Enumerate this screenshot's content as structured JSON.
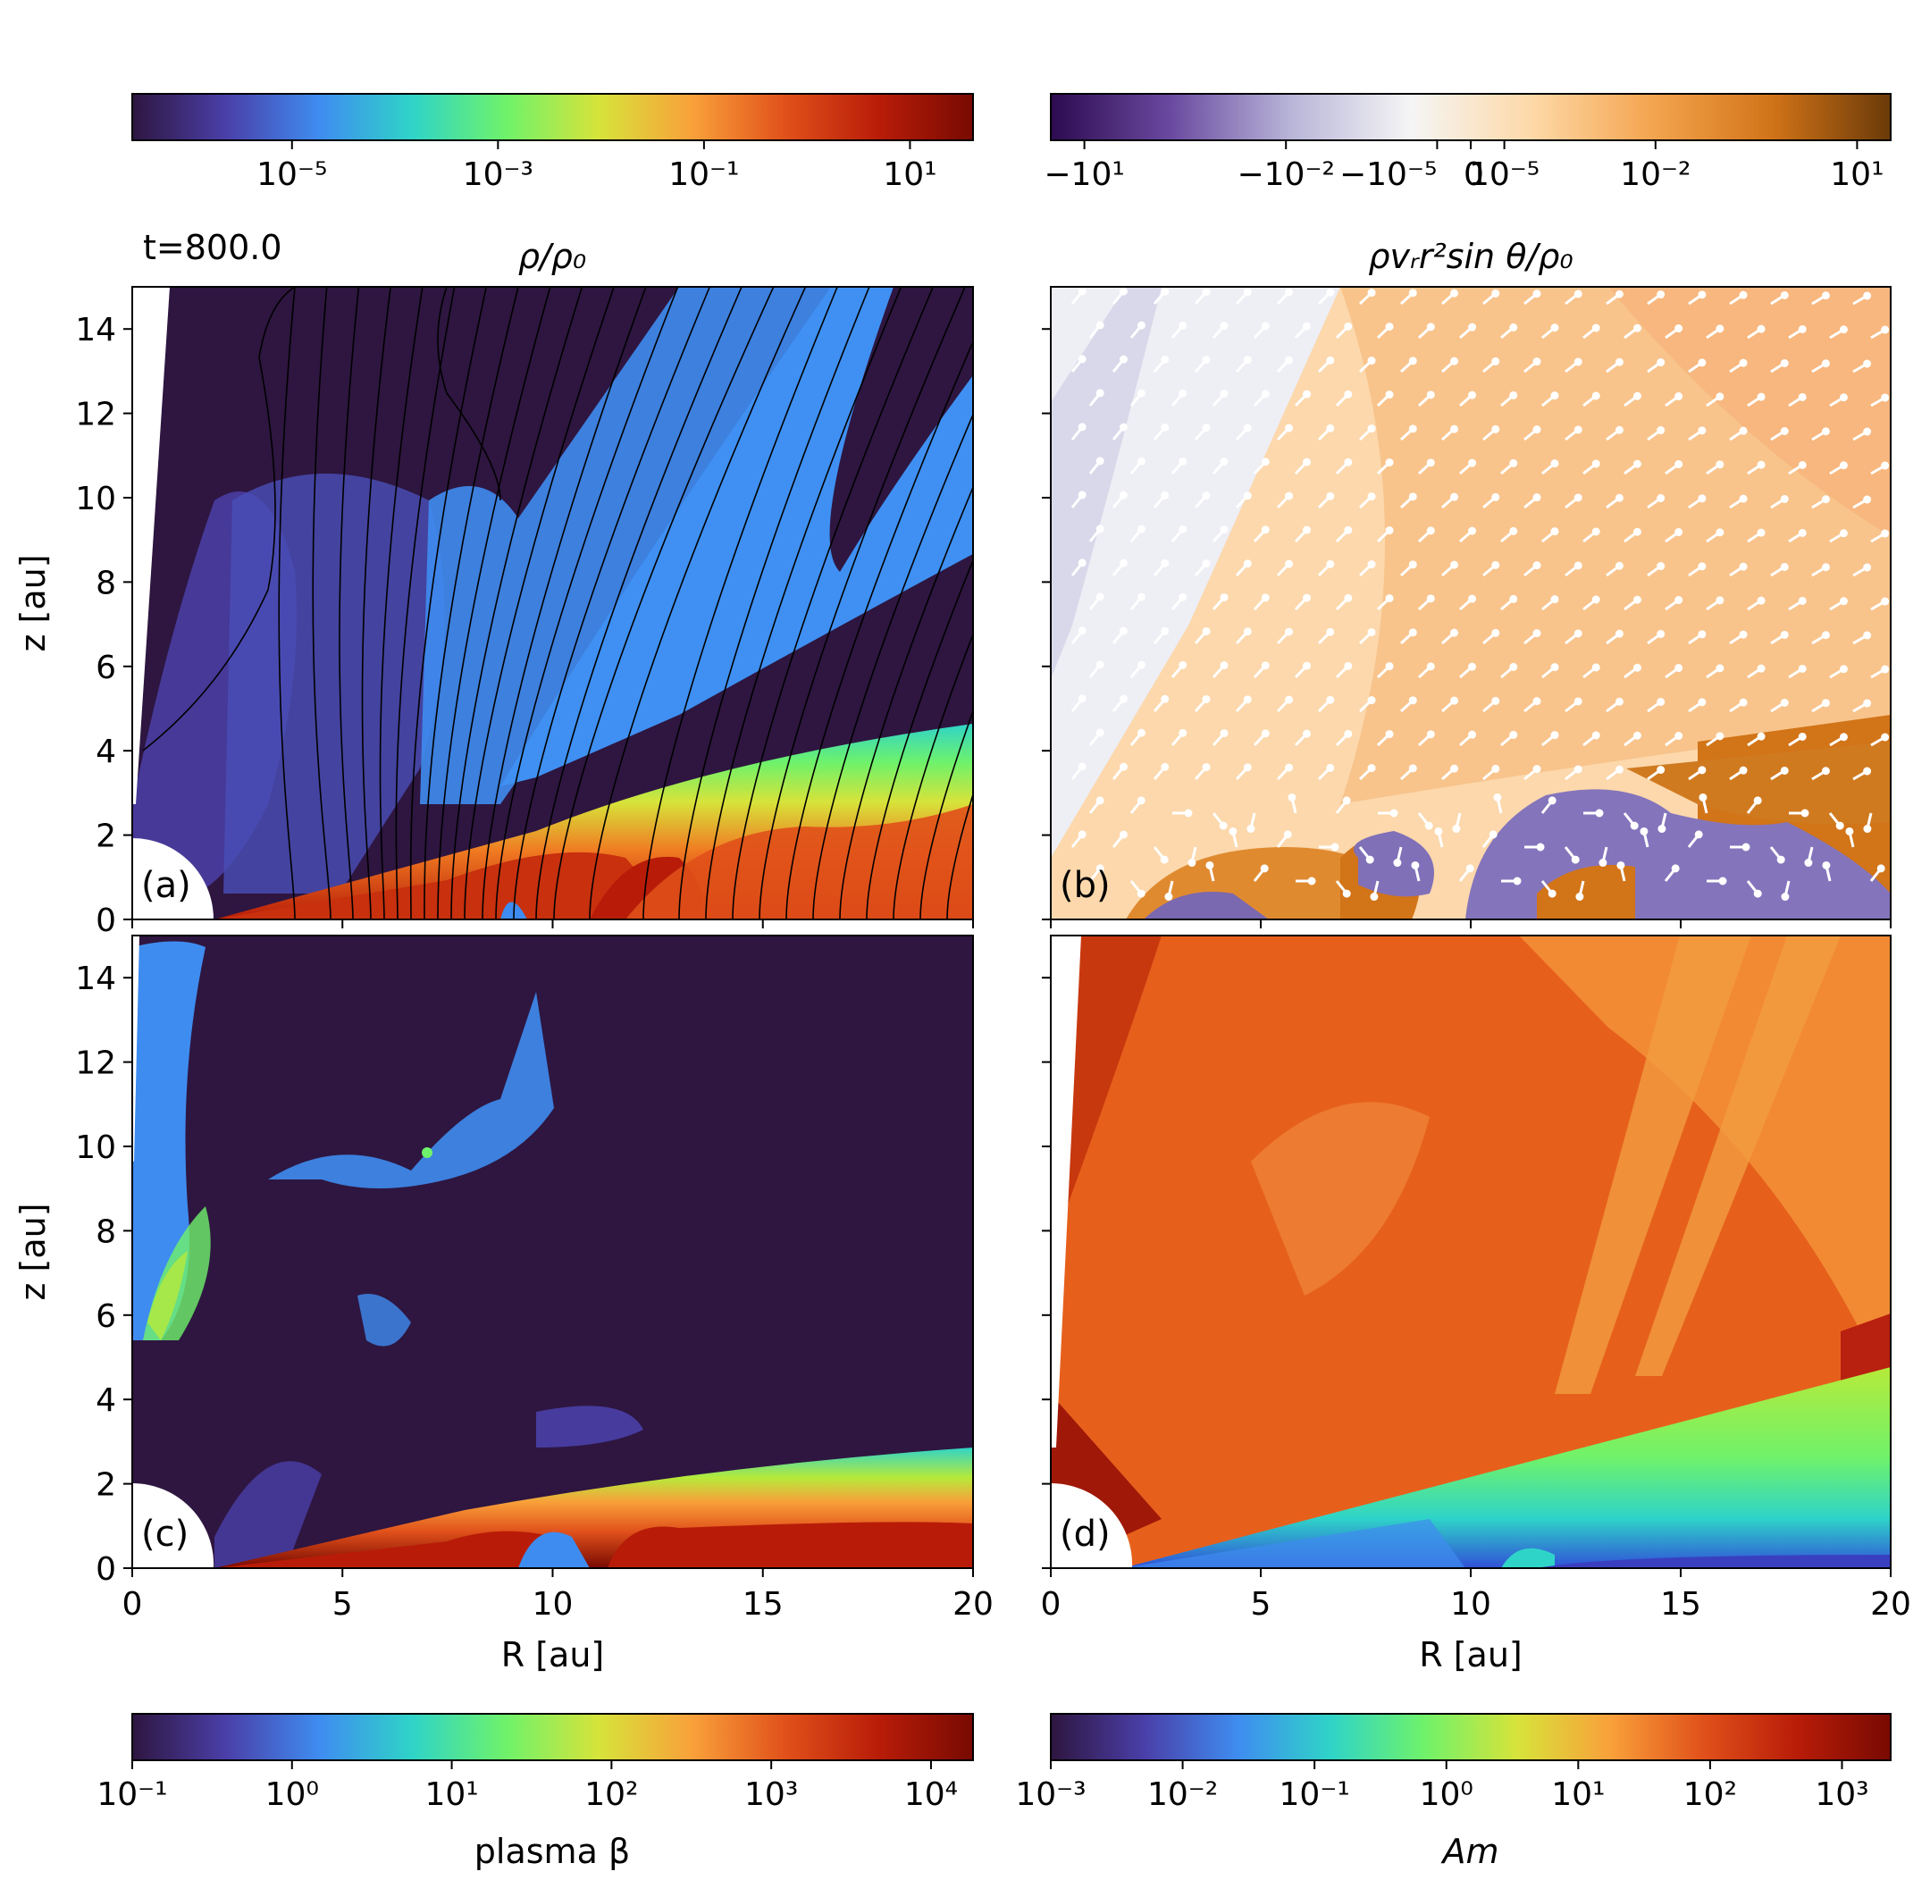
{
  "figure": {
    "time_label": "t=800.0"
  },
  "panels": [
    {
      "id": "a",
      "tag": "(a)",
      "quantity": "density",
      "cmap": [
        "#2e1640",
        "#4a3fa8",
        "#3f8cf0",
        "#2fd4c8",
        "#6ff26a",
        "#d7e33a",
        "#f9a03a",
        "#e0501a",
        "#b81c08",
        "#780a02"
      ]
    },
    {
      "id": "b",
      "tag": "(b)",
      "quantity": "mass flux",
      "cmap": [
        "#2d0b50",
        "#6a4aa0",
        "#b8b5d8",
        "#f5f5f5",
        "#fdd9a8",
        "#f4a550",
        "#d27418",
        "#6a3a08"
      ]
    },
    {
      "id": "c",
      "tag": "(c)",
      "quantity": "plasma beta",
      "cmap": [
        "#2e1640",
        "#4a3fa8",
        "#3f8cf0",
        "#2fd4c8",
        "#6ff26a",
        "#d7e33a",
        "#f9a03a",
        "#e0501a",
        "#b81c08",
        "#780a02"
      ]
    },
    {
      "id": "d",
      "tag": "(d)",
      "quantity": "Am",
      "cmap": [
        "#2e1640",
        "#4a3fa8",
        "#3f8cf0",
        "#2fd4c8",
        "#6ff26a",
        "#d7e33a",
        "#f9a03a",
        "#e0501a",
        "#b81c08",
        "#780a02"
      ]
    }
  ],
  "colorbars": {
    "top_left": {
      "label": "ρ/ρ₀",
      "ticks": [
        "10⁻⁵",
        "10⁻³",
        "10⁻¹",
        "10¹"
      ]
    },
    "top_right": {
      "label": "ρvᵣr²sin θ/ρ₀",
      "ticks": [
        "−10¹",
        "−10⁻²",
        "−10⁻⁵",
        "0",
        "10⁻⁵",
        "10⁻²",
        "10¹"
      ]
    },
    "bottom_left": {
      "label": "plasma β",
      "ticks": [
        "10⁻¹",
        "10⁰",
        "10¹",
        "10²",
        "10³",
        "10⁴"
      ]
    },
    "bottom_right": {
      "label": "Am",
      "ticks": [
        "10⁻³",
        "10⁻²",
        "10⁻¹",
        "10⁰",
        "10¹",
        "10²",
        "10³"
      ]
    }
  },
  "chart_data": [
    {
      "type": "heatmap",
      "panel": "(a)",
      "colorbar_label": "ρ/ρ₀",
      "colorbar_ticks": [
        "10⁻⁵",
        "10⁻³",
        "10⁻¹",
        "10¹"
      ],
      "ylabel": "z [au]",
      "yticks": [
        "0",
        "2",
        "4",
        "6",
        "8",
        "10",
        "12",
        "14"
      ],
      "xlim": [
        0,
        20
      ],
      "ylim": [
        0,
        15
      ],
      "overlay": "field lines"
    },
    {
      "type": "heatmap",
      "panel": "(b)",
      "colorbar_label": "ρvᵣr²sin θ/ρ₀",
      "colorbar_ticks": [
        "−10¹",
        "−10⁻²",
        "−10⁻⁵",
        "0",
        "10⁻⁵",
        "10⁻²",
        "10¹"
      ],
      "xlim": [
        0,
        20
      ],
      "ylim": [
        0,
        15
      ],
      "overlay": "velocity arrows"
    },
    {
      "type": "heatmap",
      "panel": "(c)",
      "colorbar_label": "plasma β",
      "colorbar_ticks": [
        "10⁻¹",
        "10⁰",
        "10¹",
        "10²",
        "10³",
        "10⁴"
      ],
      "xlabel": "R [au]",
      "ylabel": "z [au]",
      "xticks": [
        "0",
        "5",
        "10",
        "15",
        "20"
      ],
      "yticks": [
        "0",
        "2",
        "4",
        "6",
        "8",
        "10",
        "12",
        "14"
      ],
      "xlim": [
        0,
        20
      ],
      "ylim": [
        0,
        15
      ]
    },
    {
      "type": "heatmap",
      "panel": "(d)",
      "colorbar_label": "Am",
      "colorbar_ticks": [
        "10⁻³",
        "10⁻²",
        "10⁻¹",
        "10⁰",
        "10¹",
        "10²",
        "10³"
      ],
      "xlabel": "R [au]",
      "xticks": [
        "0",
        "5",
        "10",
        "15",
        "20"
      ],
      "xlim": [
        0,
        20
      ],
      "ylim": [
        0,
        15
      ]
    }
  ]
}
